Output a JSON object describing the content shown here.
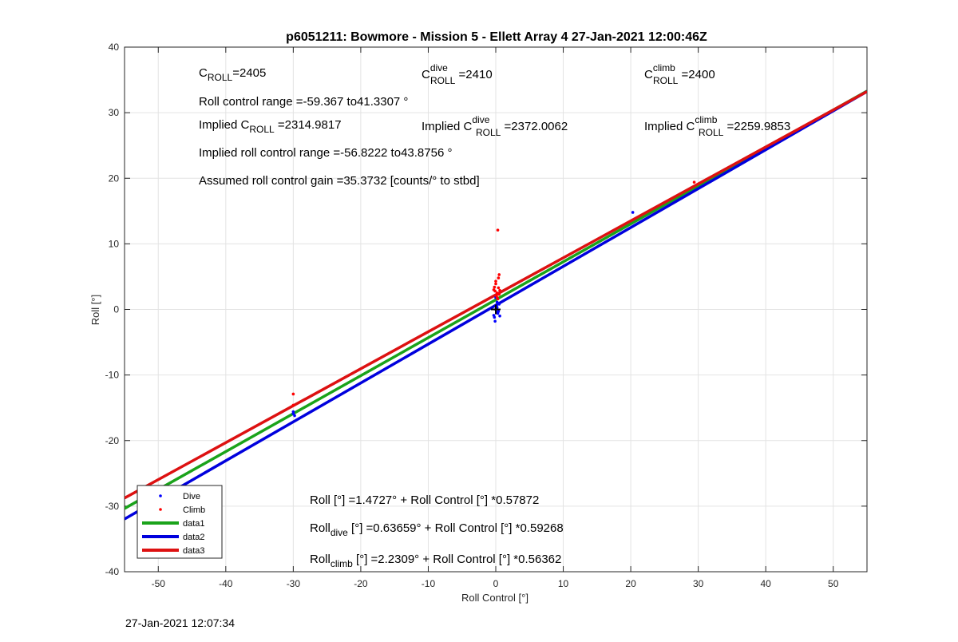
{
  "chart_data": {
    "type": "scatter",
    "title": "p6051211: Bowmore - Mission 5 - Ellett Array 4 27-Jan-2021 12:00:46Z",
    "xlabel": "Roll Control [°]",
    "ylabel": "Roll [°]",
    "xlim": [
      -55,
      55
    ],
    "ylim": [
      -40,
      40
    ],
    "xticks": [
      -50,
      -40,
      -30,
      -20,
      -10,
      0,
      10,
      20,
      30,
      40,
      50
    ],
    "yticks": [
      -40,
      -30,
      -20,
      -10,
      0,
      10,
      20,
      30,
      40
    ],
    "grid": true,
    "legend_position": "bottom-left",
    "series": [
      {
        "name": "Dive",
        "kind": "points",
        "color": "#0000ff",
        "x": [
          -30,
          -30,
          -29.8,
          0,
          0.1,
          -0.2,
          0.3,
          0.2,
          -0.1,
          0.4,
          0.5,
          0,
          -0.3,
          0.6,
          0.2,
          0.1,
          20.3,
          -50
        ],
        "y": [
          -15.6,
          -15.9,
          -16.2,
          0,
          0.5,
          -1.2,
          -0.6,
          1.1,
          -1.8,
          -0.3,
          0.8,
          1.8,
          -0.9,
          -1.0,
          0.3,
          -0.4,
          14.8,
          -28.6
        ]
      },
      {
        "name": "Climb",
        "kind": "points",
        "color": "#ff0000",
        "x": [
          -30,
          -30,
          0,
          0.2,
          -0.2,
          0.4,
          0.5,
          0.1,
          -0.3,
          0.3,
          0.6,
          0,
          0.2,
          -0.1,
          0.4,
          0.3,
          0.5,
          29.4
        ],
        "y": [
          -12.9,
          -14.6,
          3.9,
          2.5,
          3.4,
          4.8,
          5.3,
          2.1,
          3.0,
          12.1,
          2.9,
          4.3,
          1.8,
          2.8,
          3.3,
          1.6,
          2.3,
          19.4
        ]
      },
      {
        "name": "data1",
        "kind": "line",
        "color": "#1aa31a",
        "intercept": 1.4727,
        "slope": 0.57872
      },
      {
        "name": "data2",
        "kind": "line",
        "color": "#0000dd",
        "intercept": 0.63659,
        "slope": 0.59268
      },
      {
        "name": "data3",
        "kind": "line",
        "color": "#dd1111",
        "intercept": 2.2309,
        "slope": 0.56362
      }
    ],
    "annotations": {
      "c_roll": {
        "base": "C",
        "sub": "ROLL",
        "value": "=2405"
      },
      "c_roll_dive": {
        "base": "C",
        "sup": "dive",
        "sub": "ROLL",
        "value": " =2410"
      },
      "c_roll_climb": {
        "base": "C",
        "sup": "climb",
        "sub": "ROLL",
        "value": " =2400"
      },
      "roll_control_range": "Roll control range =-59.367 to41.3307 °",
      "implied_c_roll": {
        "prefix": "Implied C",
        "sub": "ROLL",
        "value": " =2314.9817"
      },
      "implied_c_roll_dive": {
        "prefix": "Implied C",
        "sup": "dive",
        "sub": "ROLL",
        "value": " =2372.0062"
      },
      "implied_c_roll_climb": {
        "prefix": "Implied C",
        "sup": "climb",
        "sub": "ROLL",
        "value": " =2259.9853"
      },
      "implied_range": "Implied roll control range =-56.8222 to43.8756 °",
      "gain": "Assumed roll control gain =35.3732 [counts/° to stbd]",
      "fit_all": "Roll [°] =1.4727° + Roll Control [°] *0.57872",
      "fit_dive": {
        "base": "Roll",
        "sub": "dive",
        "rest": " [°] =0.63659° + Roll Control [°] *0.59268"
      },
      "fit_climb": {
        "base": "Roll",
        "sub": "climb",
        "rest": " [°] =2.2309° + Roll Control [°] *0.56362"
      }
    }
  },
  "footer_timestamp": "27-Jan-2021 12:07:34"
}
